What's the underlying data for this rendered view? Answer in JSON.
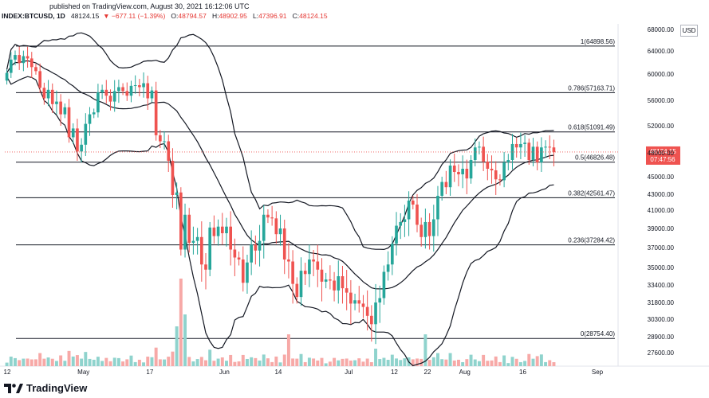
{
  "header": {
    "published": "published on TradingView.com, August 30, 2021 16:12:06 UTC",
    "symbol": "INDEX:BTCUSD, 1D",
    "last": "48124.15",
    "change_arrow": "▼",
    "change": "−677.11 (−1.39%)",
    "o_label": "O:",
    "o_value": "48794.57",
    "h_label": "H:",
    "h_value": "48902.95",
    "l_label": "L:",
    "l_value": "47396.91",
    "c_label": "C:",
    "c_value": "48124.15"
  },
  "currency_badge": "USD",
  "footer": {
    "brand": "TradingView",
    "logo_icon": "tradingview-logo-icon"
  },
  "colors": {
    "up": "#26a69a",
    "down": "#ef5350",
    "vol_up": "#8fd3cd",
    "vol_down": "#f7a9a7",
    "band": "#131722",
    "fib": "#131722",
    "price_badge": "#ef5350"
  },
  "chart_data": {
    "type": "candlestick",
    "symbol": "INDEX:BTCUSD",
    "interval": "1D",
    "ylim": [
      26500,
      68000
    ],
    "y_ticks": [
      "68000.00",
      "64000.00",
      "60000.00",
      "56000.00",
      "52000.00",
      "48000.00",
      "45000.00",
      "43000.00",
      "41000.00",
      "39000.00",
      "37000.00",
      "35000.00",
      "33400.00",
      "31800.00",
      "30300.00",
      "28900.00",
      "27600.00"
    ],
    "x_ticks": [
      "12",
      "May",
      "17",
      "Jun",
      "14",
      "Jul",
      "12",
      "22",
      "Aug",
      "16",
      "Sep"
    ],
    "x_tick_days": [
      0,
      19,
      35,
      53,
      66,
      83,
      94,
      102,
      111,
      125,
      143
    ],
    "n_days": 148,
    "fib_levels": [
      {
        "ratio": "1",
        "price": 64898.56,
        "label": "1(64898.56)"
      },
      {
        "ratio": "0.786",
        "price": 57163.71,
        "label": "0.786(57163.71)"
      },
      {
        "ratio": "0.618",
        "price": 51091.49,
        "label": "0.618(51091.49)"
      },
      {
        "ratio": "0.5",
        "price": 46826.48,
        "label": "0.5(46826.48)"
      },
      {
        "ratio": "0.382",
        "price": 42561.47,
        "label": "0.382(42561.47)"
      },
      {
        "ratio": "0.236",
        "price": 37284.42,
        "label": "0.236(37284.42)"
      },
      {
        "ratio": "0",
        "price": 28754.4,
        "label": "0(28754.40)"
      }
    ],
    "last_price": "48124.15",
    "last_price_value": 48124.15,
    "countdown": "07:47:56",
    "closes": [
      60200,
      62500,
      63300,
      61900,
      63100,
      62700,
      61200,
      60500,
      57900,
      56300,
      57600,
      55400,
      55800,
      53800,
      54900,
      50300,
      51600,
      48200,
      49200,
      52300,
      53800,
      54100,
      57200,
      57600,
      56700,
      55800,
      57400,
      58000,
      57400,
      56700,
      58200,
      58300,
      58000,
      58600,
      56300,
      57500,
      50600,
      49700,
      49700,
      47000,
      42900,
      43200,
      36800,
      40500,
      37500,
      37700,
      38100,
      35300,
      34800,
      39100,
      38200,
      39200,
      38500,
      39200,
      36800,
      36000,
      35800,
      33600,
      35500,
      37300,
      36700,
      37700,
      40500,
      40200,
      40100,
      38400,
      39000,
      35800,
      35600,
      33500,
      32300,
      34700,
      34400,
      35800,
      35600,
      34800,
      33700,
      33900,
      33800,
      32900,
      34200,
      33100,
      32700,
      31700,
      32000,
      31700,
      31400,
      30600,
      29900,
      31800,
      32200,
      34600,
      35300,
      37400,
      39300,
      39700,
      40000,
      42200,
      41700,
      39400,
      38100,
      39700,
      38200,
      40000,
      42800,
      44400,
      43800,
      46400,
      45600,
      45300,
      46000,
      44800,
      47100,
      48800,
      48900,
      46900,
      46000,
      45800,
      44700,
      44600,
      46800,
      47100,
      49300,
      48800,
      49300,
      49500,
      47100,
      48900,
      46800,
      48800,
      48900,
      48800,
      48100
    ]
  }
}
